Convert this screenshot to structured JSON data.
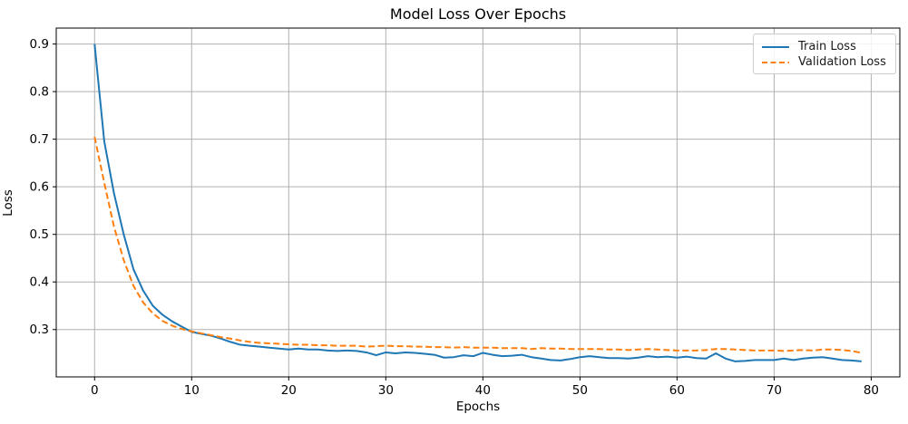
{
  "figure": {
    "background": "#ffffff"
  },
  "chart_data": {
    "type": "line",
    "title": "Model Loss Over Epochs",
    "xlabel": "Epochs",
    "ylabel": "Loss",
    "grid": true,
    "grid_color": "#b0b0b0",
    "axis_color": "#000000",
    "xlim": [
      -3.95,
      82.95
    ],
    "ylim": [
      0.2005,
      0.9335
    ],
    "xticks": [
      0,
      10,
      20,
      30,
      40,
      50,
      60,
      70,
      80
    ],
    "yticks": [
      0.3,
      0.4,
      0.5,
      0.6,
      0.7,
      0.8,
      0.9
    ],
    "legend": {
      "position": "upper right",
      "entries": [
        "Train Loss",
        "Validation Loss"
      ]
    },
    "x": [
      0,
      1,
      2,
      3,
      4,
      5,
      6,
      7,
      8,
      9,
      10,
      11,
      12,
      13,
      14,
      15,
      16,
      17,
      18,
      19,
      20,
      21,
      22,
      23,
      24,
      25,
      26,
      27,
      28,
      29,
      30,
      31,
      32,
      33,
      34,
      35,
      36,
      37,
      38,
      39,
      40,
      41,
      42,
      43,
      44,
      45,
      46,
      47,
      48,
      49,
      50,
      51,
      52,
      53,
      54,
      55,
      56,
      57,
      58,
      59,
      60,
      61,
      62,
      63,
      64,
      65,
      66,
      67,
      68,
      69,
      70,
      71,
      72,
      73,
      74,
      75,
      76,
      77,
      78,
      79
    ],
    "series": [
      {
        "name": "Train Loss",
        "color": "#1f77b4",
        "style": "solid",
        "values": [
          0.9,
          0.695,
          0.586,
          0.5,
          0.427,
          0.382,
          0.35,
          0.331,
          0.317,
          0.306,
          0.295,
          0.291,
          0.287,
          0.281,
          0.274,
          0.268,
          0.266,
          0.264,
          0.262,
          0.26,
          0.258,
          0.26,
          0.258,
          0.258,
          0.256,
          0.255,
          0.256,
          0.255,
          0.252,
          0.246,
          0.252,
          0.25,
          0.252,
          0.251,
          0.249,
          0.247,
          0.241,
          0.242,
          0.246,
          0.244,
          0.251,
          0.247,
          0.244,
          0.245,
          0.247,
          0.242,
          0.239,
          0.236,
          0.235,
          0.238,
          0.242,
          0.244,
          0.242,
          0.24,
          0.24,
          0.239,
          0.241,
          0.244,
          0.242,
          0.243,
          0.241,
          0.243,
          0.24,
          0.239,
          0.25,
          0.239,
          0.233,
          0.234,
          0.236,
          0.236,
          0.236,
          0.239,
          0.236,
          0.239,
          0.241,
          0.242,
          0.239,
          0.236,
          0.235,
          0.233
        ]
      },
      {
        "name": "Validation Loss",
        "color": "#ff7f0e",
        "style": "dashed",
        "values": [
          0.705,
          0.608,
          0.516,
          0.446,
          0.392,
          0.357,
          0.334,
          0.318,
          0.308,
          0.301,
          0.296,
          0.292,
          0.288,
          0.284,
          0.281,
          0.277,
          0.274,
          0.272,
          0.271,
          0.27,
          0.269,
          0.268,
          0.268,
          0.267,
          0.267,
          0.266,
          0.266,
          0.266,
          0.264,
          0.265,
          0.266,
          0.265,
          0.265,
          0.264,
          0.264,
          0.263,
          0.263,
          0.262,
          0.263,
          0.262,
          0.262,
          0.262,
          0.261,
          0.261,
          0.261,
          0.259,
          0.261,
          0.26,
          0.26,
          0.259,
          0.259,
          0.259,
          0.259,
          0.258,
          0.258,
          0.257,
          0.258,
          0.259,
          0.258,
          0.257,
          0.256,
          0.256,
          0.256,
          0.257,
          0.259,
          0.259,
          0.258,
          0.257,
          0.256,
          0.256,
          0.256,
          0.255,
          0.256,
          0.257,
          0.256,
          0.258,
          0.258,
          0.257,
          0.255,
          0.251
        ]
      }
    ]
  }
}
